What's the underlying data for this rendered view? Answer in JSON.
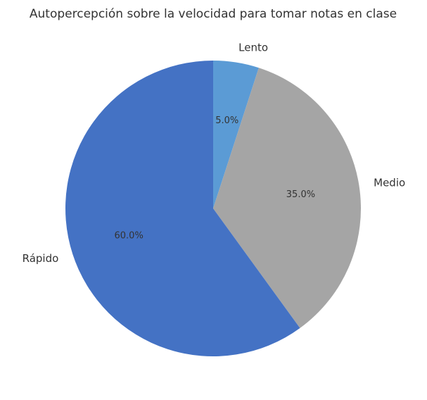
{
  "chart_data": {
    "type": "pie",
    "title": "Autopercepción sobre la velocidad para tomar notas en clase",
    "categories": [
      "Lento",
      "Medio",
      "Rápido"
    ],
    "values": [
      5,
      35,
      60
    ],
    "value_labels": [
      "5.0%",
      "35.0%",
      "60.0%"
    ],
    "colors": [
      "#5b9bd5",
      "#a5a5a5",
      "#4472c4"
    ]
  }
}
